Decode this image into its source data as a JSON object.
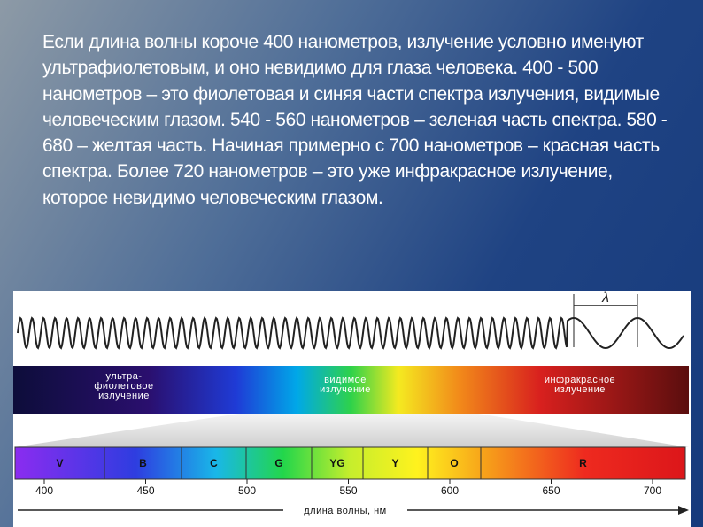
{
  "text": "Если длина волны короче 400 нанометров, излучение условно именуют ультрафиолетовым, и оно невидимо для глаза человека. 400 - 500 нанометров – это фиолетовая и синяя части спектра излучения, видимые человеческим глазом. 540 - 560 нанометров – зеленая часть спектра. 580 - 680 – желтая часть. Начиная примерно с 700 нанометров – красная часть спектра. Более 720 нанометров – это уже инфракрасное излучение, которое невидимо человеческим глазом.",
  "figure": {
    "wavelength_symbol": "λ",
    "regions": [
      {
        "lines": [
          "ультра-",
          "фиолетовое",
          "излучение"
        ]
      },
      {
        "lines": [
          "видимое",
          "излучение"
        ]
      },
      {
        "lines": [
          "инфракрасное",
          "излучение"
        ]
      }
    ],
    "bands": [
      "V",
      "B",
      "C",
      "G",
      "YG",
      "Y",
      "O",
      "R"
    ],
    "axis": {
      "ticks": [
        400,
        450,
        500,
        550,
        600,
        650,
        700
      ],
      "label": "длина волны, нм"
    }
  }
}
